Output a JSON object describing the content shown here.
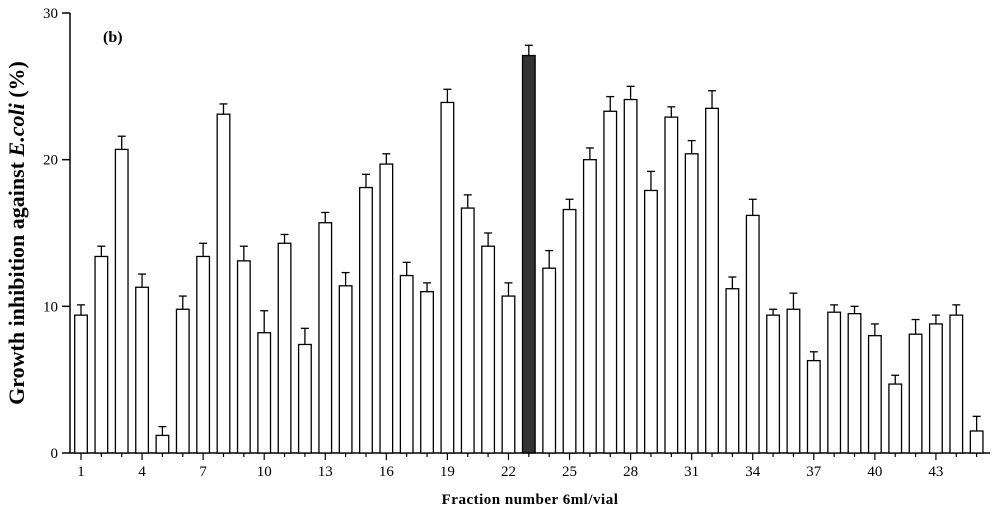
{
  "chart_data": {
    "type": "bar",
    "panel_label": "(b)",
    "xlabel": "Fraction number 6ml/vial",
    "ylabel_prefix": "Growth inhibition against ",
    "ylabel_italic": "E.coli",
    "ylabel_suffix": " (%)",
    "ylim": [
      0,
      30
    ],
    "yticks": [
      0,
      10,
      20,
      30
    ],
    "xtick_labels": [
      "1",
      "4",
      "7",
      "10",
      "13",
      "16",
      "19",
      "22",
      "25",
      "28",
      "31",
      "34",
      "37",
      "40",
      "43"
    ],
    "categories": [
      1,
      2,
      3,
      4,
      5,
      6,
      7,
      8,
      9,
      10,
      11,
      12,
      13,
      14,
      15,
      16,
      17,
      18,
      19,
      20,
      21,
      22,
      23,
      24,
      25,
      26,
      27,
      28,
      29,
      30,
      31,
      32,
      33,
      34,
      35,
      36,
      37,
      38,
      39,
      40,
      41,
      42,
      43,
      44,
      45
    ],
    "values": [
      9.4,
      13.4,
      20.7,
      11.3,
      1.2,
      9.8,
      13.4,
      23.1,
      13.1,
      8.2,
      14.3,
      7.4,
      15.7,
      11.4,
      18.1,
      19.7,
      12.1,
      11.0,
      23.9,
      16.7,
      14.1,
      10.7,
      27.1,
      12.6,
      16.6,
      20.0,
      23.3,
      24.1,
      17.9,
      22.9,
      20.4,
      23.5,
      11.2,
      16.2,
      9.4,
      9.8,
      6.3,
      9.6,
      9.5,
      8.0,
      4.7,
      8.1,
      8.8,
      9.4,
      1.5
    ],
    "errors": [
      0.7,
      0.7,
      0.9,
      0.9,
      0.6,
      0.9,
      0.9,
      0.7,
      1.0,
      1.5,
      0.6,
      1.1,
      0.7,
      0.9,
      0.9,
      0.7,
      0.9,
      0.6,
      0.9,
      0.9,
      0.9,
      0.9,
      0.7,
      1.2,
      0.7,
      0.8,
      1.0,
      0.9,
      1.3,
      0.7,
      0.9,
      1.2,
      0.8,
      1.1,
      0.4,
      1.1,
      0.6,
      0.5,
      0.5,
      0.8,
      0.6,
      1.0,
      0.6,
      0.7,
      1.0
    ],
    "highlight_index": 22,
    "colors": {
      "bar_fill": "#ffffff",
      "highlight_fill": "#333333",
      "stroke": "#000000"
    },
    "grid": false
  }
}
